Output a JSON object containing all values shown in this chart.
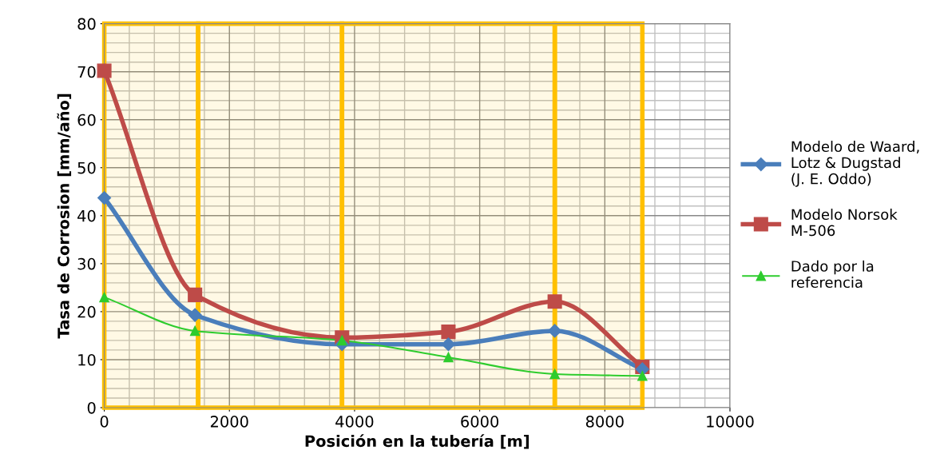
{
  "chart_data": {
    "type": "line",
    "xlabel": "Posición en la tubería [m]",
    "ylabel": "Tasa de Corrosion [mm/año]",
    "x": [
      0,
      1450,
      3800,
      5500,
      7200,
      8600
    ],
    "series": [
      {
        "name": "Modelo de Waard, Lotz & Dugstad (J. E. Oddo)",
        "color": "#4a7ebb",
        "marker": "diamond",
        "values": [
          43.7,
          19.3,
          13.2,
          13.2,
          16,
          8
        ]
      },
      {
        "name": "Modelo Norsok M-506",
        "color": "#be4b48",
        "marker": "square",
        "values": [
          70.2,
          23.5,
          14.6,
          15.8,
          22.1,
          8.5
        ]
      },
      {
        "name": "Dado por la referencia",
        "color": "#2ecc2e",
        "marker": "triangle",
        "values": [
          23,
          16,
          14,
          10.5,
          7,
          6.6
        ]
      }
    ],
    "xlim": [
      0,
      10000
    ],
    "ylim": [
      0,
      80
    ],
    "xticks": [
      0,
      2000,
      4000,
      6000,
      8000,
      10000
    ],
    "yticks": [
      0,
      10,
      20,
      30,
      40,
      50,
      60,
      70,
      80
    ],
    "bands": [
      {
        "axis": "x",
        "from": 0,
        "to": 1500,
        "color": "#ffc000"
      },
      {
        "axis": "x",
        "from": 1500,
        "to": 3800,
        "color": "#ffc000"
      },
      {
        "axis": "x",
        "from": 3800,
        "to": 7200,
        "color": "#ffc000"
      },
      {
        "axis": "x",
        "from": 7200,
        "to": 8600,
        "color": "#ffc000"
      }
    ],
    "grid": true,
    "legend": "right"
  }
}
